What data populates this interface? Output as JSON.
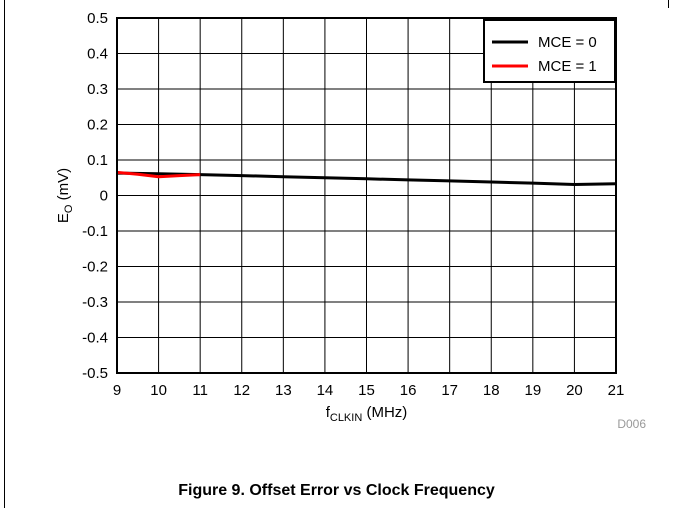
{
  "figure": {
    "caption": "Figure 9. Offset Error vs Clock Frequency",
    "code": "D006"
  },
  "chart_data": {
    "type": "line",
    "xlabel_main": "f",
    "xlabel_sub": "CLKIN",
    "xlabel_unit": " (MHz)",
    "ylabel_main": "E",
    "ylabel_sub": "O",
    "ylabel_unit": " (mV)",
    "xlim": [
      9,
      21
    ],
    "ylim": [
      -0.5,
      0.5
    ],
    "x_ticks": [
      "9",
      "10",
      "11",
      "12",
      "13",
      "14",
      "15",
      "16",
      "17",
      "18",
      "19",
      "20",
      "21"
    ],
    "y_ticks": [
      "0.5",
      "0.4",
      "0.3",
      "0.2",
      "0.1",
      "0",
      "-0.1",
      "-0.2",
      "-0.3",
      "-0.4",
      "-0.5"
    ],
    "grid": true,
    "legend_position": "top-right",
    "series": [
      {
        "name": "MCE = 0",
        "color": "#000000",
        "x": [
          9,
          10,
          11,
          12,
          13,
          14,
          15,
          16,
          17,
          18,
          19,
          20,
          21
        ],
        "y": [
          0.063,
          0.061,
          0.059,
          0.056,
          0.053,
          0.05,
          0.047,
          0.044,
          0.041,
          0.038,
          0.035,
          0.031,
          0.033
        ]
      },
      {
        "name": "MCE = 1",
        "color": "#ff0000",
        "x": [
          9,
          9.5,
          10,
          10.5,
          11
        ],
        "y": [
          0.065,
          0.06,
          0.053,
          0.056,
          0.059
        ]
      }
    ]
  }
}
